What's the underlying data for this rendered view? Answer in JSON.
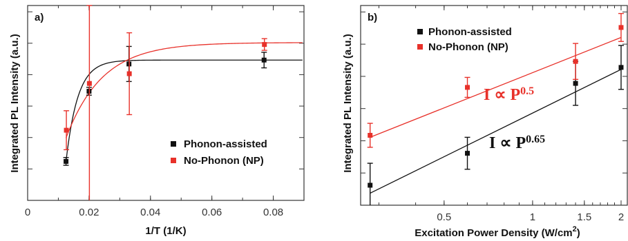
{
  "colors": {
    "black_series": "#111111",
    "red_series": "#e8312a",
    "axis": "#333333"
  },
  "chart_data": [
    {
      "type": "scatter",
      "panel_label": "a)",
      "xlabel": "1/T (1/K)",
      "ylabel": "Integrated PL Intensity (a.u.)",
      "xlim": [
        0,
        0.09
      ],
      "ylim": [
        0,
        1
      ],
      "x_ticks": [
        0,
        0.02,
        0.04,
        0.06,
        0.08
      ],
      "x_tick_labels": [
        "0",
        "0.02",
        "0.04",
        "0.06",
        "0.08"
      ],
      "y_tick_labels_shown": false,
      "legend_position": "lower-right",
      "series": [
        {
          "name": "Phonon-assisted",
          "color": "#111111",
          "x": [
            0.0125,
            0.02,
            0.033,
            0.077
          ],
          "y": [
            0.2,
            0.56,
            0.7,
            0.72
          ],
          "yerr": [
            0.02,
            0.02,
            0.09,
            0.04
          ],
          "fit": "sigmoid"
        },
        {
          "name": "No-Phonon (NP)",
          "color": "#e8312a",
          "x": [
            0.0125,
            0.02,
            0.033,
            0.077
          ],
          "y": [
            0.36,
            0.6,
            0.65,
            0.8
          ],
          "yerr": [
            0.1,
            0.68,
            0.21,
            0.03
          ],
          "fit": "sigmoid"
        }
      ]
    },
    {
      "type": "scatter",
      "panel_label": "b)",
      "xlabel": "Excitation Power Density (W/cm",
      "xlabel_sup": "2",
      "xlabel_tail": ")",
      "ylabel": "Integrated PL Intensity (a.u.)",
      "x_scale": "log",
      "xlim": [
        0.26,
        2.1
      ],
      "ylim": [
        0,
        1
      ],
      "x_ticks": [
        0.5,
        1,
        1.5,
        2
      ],
      "x_tick_labels": [
        "0.5",
        "1",
        "1.5",
        "2"
      ],
      "y_tick_labels_shown": false,
      "legend_position": "top-left",
      "annotations": [
        {
          "text": "I ∝ P",
          "sup": "0.5",
          "color": "#e8312a"
        },
        {
          "text": "I ∝ P",
          "sup": "0.65",
          "color": "#111111"
        }
      ],
      "series": [
        {
          "name": "Phonon-assisted",
          "color": "#111111",
          "x": [
            0.28,
            0.6,
            1.4,
            2.0
          ],
          "y": [
            0.1,
            0.26,
            0.61,
            0.69
          ],
          "yerr": [
            0.11,
            0.08,
            0.11,
            0.11
          ],
          "fit": "power-law"
        },
        {
          "name": "No-Phonon (NP)",
          "color": "#e8312a",
          "x": [
            0.28,
            0.6,
            1.4,
            2.0
          ],
          "y": [
            0.35,
            0.59,
            0.72,
            0.89
          ],
          "yerr": [
            0.06,
            0.05,
            0.09,
            0.07
          ],
          "fit": "power-law"
        }
      ]
    }
  ]
}
